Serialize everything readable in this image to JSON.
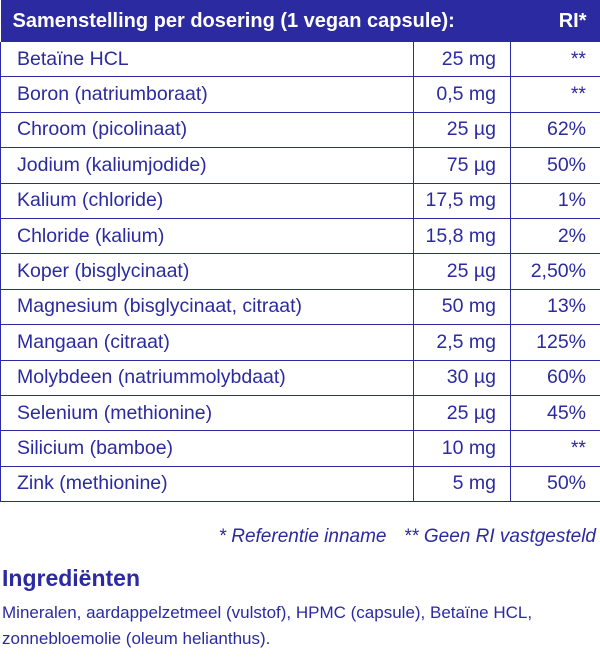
{
  "table": {
    "header_label": "Samenstelling per dosering (1 vegan capsule):",
    "header_ri": "RI*",
    "rows": [
      {
        "name": "Betaïne HCL",
        "amount": "25 mg",
        "ri": "**"
      },
      {
        "name": "Boron (natriumboraat)",
        "amount": "0,5 mg",
        "ri": "**"
      },
      {
        "name": "Chroom (picolinaat)",
        "amount": "25 µg",
        "ri": "62%"
      },
      {
        "name": "Jodium (kaliumjodide)",
        "amount": "75 µg",
        "ri": "50%"
      },
      {
        "name": "Kalium (chloride)",
        "amount": "17,5 mg",
        "ri": "1%"
      },
      {
        "name": "Chloride (kalium)",
        "amount": "15,8 mg",
        "ri": "2%"
      },
      {
        "name": "Koper (bisglycinaat)",
        "amount": "25 µg",
        "ri": "2,50%"
      },
      {
        "name": "Magnesium (bisglycinaat, citraat)",
        "amount": "50 mg",
        "ri": "13%"
      },
      {
        "name": "Mangaan (citraat)",
        "amount": "2,5 mg",
        "ri": "125%"
      },
      {
        "name": "Molybdeen (natriummolybdaat)",
        "amount": "30 µg",
        "ri": "60%"
      },
      {
        "name": "Selenium (methionine)",
        "amount": "25 µg",
        "ri": "45%"
      },
      {
        "name": "Silicium (bamboe)",
        "amount": "10 mg",
        "ri": "**"
      },
      {
        "name": "Zink (methionine)",
        "amount": "5 mg",
        "ri": "50%"
      }
    ]
  },
  "footnotes": {
    "ri": "* Referentie inname",
    "no_ri": "** Geen RI vastgesteld"
  },
  "ingredients": {
    "title": "Ingrediënten",
    "text": "Mineralen, aardappelzetmeel (vulstof), HPMC (capsule), Betaïne HCL, zonnebloemolie (oleum helianthus)."
  },
  "colors": {
    "brand": "#2b2aa0",
    "header_text": "#ffffff"
  }
}
